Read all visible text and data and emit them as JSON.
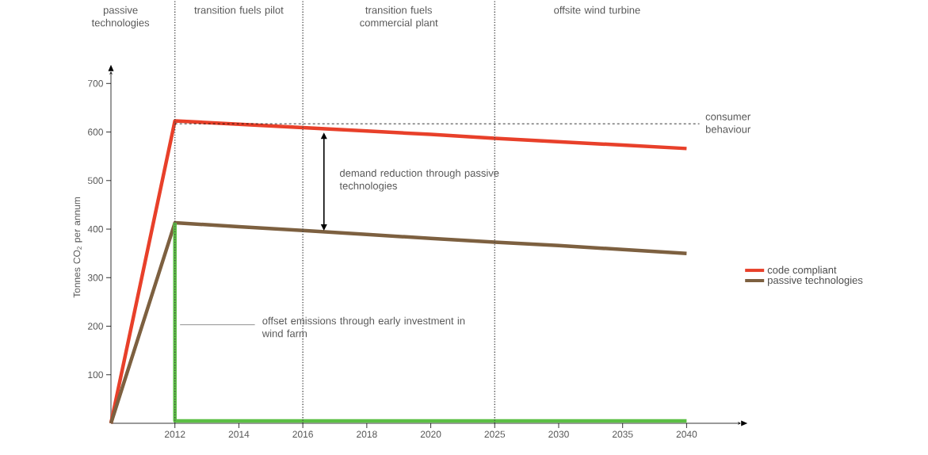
{
  "chart_data": {
    "type": "line",
    "ylabel": "Tonnes CO$_{2}$ per annum",
    "categories": [
      null,
      "2012",
      "2014",
      "2016",
      "2018",
      "2020",
      "2025",
      "2030",
      "2035",
      "2040"
    ],
    "series": [
      {
        "name": "code compliant",
        "color": "#e8402a",
        "values": [
          0,
          623,
          616,
          609,
          602,
          595,
          587,
          580,
          573,
          566
        ]
      },
      {
        "name": "passive technologies",
        "color": "#7d6040",
        "values": [
          0,
          413,
          405,
          397,
          389,
          381,
          373,
          366,
          358,
          350
        ]
      },
      {
        "type": "step",
        "color": "#5cbf45",
        "values": [
          null,
          413,
          5,
          5,
          5,
          5,
          5,
          5,
          5,
          5
        ]
      }
    ],
    "ylim": [
      0,
      725
    ],
    "yticks": [
      100,
      200,
      300,
      400,
      500,
      600,
      700
    ],
    "ref_lines": [
      {
        "axis": "y",
        "value": 617,
        "label": "consumer behaviour",
        "line_style": "dashed",
        "color": "#000000"
      },
      {
        "axis": "x",
        "value": "2012",
        "line_style": "dotted",
        "color": "#444444"
      },
      {
        "axis": "x",
        "value": "2016",
        "line_style": "dotted",
        "color": "#444444"
      },
      {
        "axis": "x",
        "value": "2025",
        "line_style": "dotted",
        "color": "#444444"
      }
    ],
    "annotations": [
      "passive technologies",
      "transition fuels pilot",
      "transition fuels commercial plant",
      "offsite wind turbine",
      "demand reduction through passive technologies",
      "offset emissions through early investment in wind farm"
    ],
    "legend": "right",
    "grid": false,
    "line_style": "solid",
    "marker": "none"
  }
}
